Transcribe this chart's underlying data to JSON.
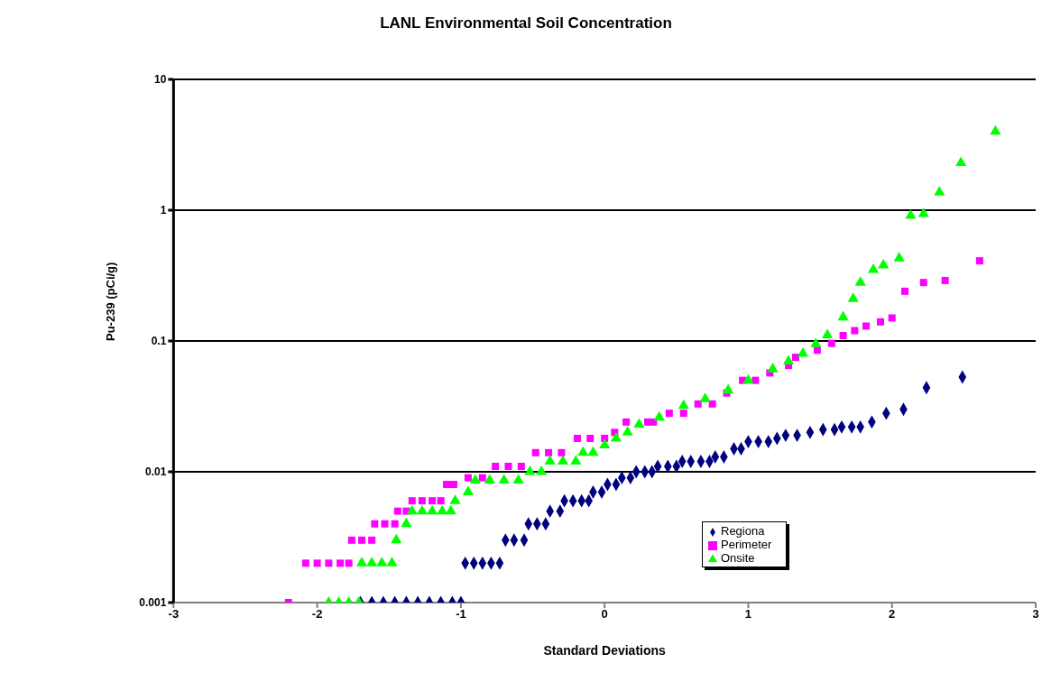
{
  "chart_data": {
    "type": "scatter",
    "title": "LANL Environmental Soil Concentration",
    "xlabel": "Standard Deviations",
    "ylabel": "Pu-239 (pCi/g)",
    "log": "y",
    "xlim": [
      -3,
      3
    ],
    "xticks": [
      -3,
      -2,
      -1,
      0,
      1,
      2,
      3
    ],
    "ylim": [
      0.001,
      10
    ],
    "yticks": [
      0.001,
      0.01,
      0.1,
      1,
      10
    ],
    "grid": "y",
    "legend": "bottom right",
    "series": [
      {
        "name": "Regiona",
        "color": "#000080",
        "marker": "diamond",
        "x": [
          -1.7,
          -1.62,
          -1.54,
          -1.46,
          -1.38,
          -1.3,
          -1.22,
          -1.14,
          -1.06,
          -1.0,
          -0.97,
          -0.91,
          -0.85,
          -0.79,
          -0.73,
          -0.69,
          -0.63,
          -0.56,
          -0.53,
          -0.47,
          -0.41,
          -0.38,
          -0.31,
          -0.28,
          -0.22,
          -0.16,
          -0.11,
          -0.08,
          -0.02,
          0.02,
          0.08,
          0.12,
          0.18,
          0.22,
          0.28,
          0.33,
          0.37,
          0.44,
          0.5,
          0.54,
          0.6,
          0.67,
          0.73,
          0.77,
          0.83,
          0.9,
          0.95,
          1.0,
          1.07,
          1.14,
          1.2,
          1.26,
          1.34,
          1.43,
          1.52,
          1.6,
          1.65,
          1.72,
          1.78,
          1.86,
          1.96,
          2.08,
          2.24,
          2.49
        ],
        "values": [
          0.001,
          0.001,
          0.001,
          0.001,
          0.001,
          0.001,
          0.001,
          0.001,
          0.001,
          0.001,
          0.002,
          0.002,
          0.002,
          0.002,
          0.002,
          0.003,
          0.003,
          0.003,
          0.004,
          0.004,
          0.004,
          0.005,
          0.005,
          0.006,
          0.006,
          0.006,
          0.006,
          0.007,
          0.007,
          0.008,
          0.008,
          0.009,
          0.009,
          0.01,
          0.01,
          0.01,
          0.011,
          0.011,
          0.011,
          0.012,
          0.012,
          0.012,
          0.012,
          0.013,
          0.013,
          0.015,
          0.015,
          0.017,
          0.017,
          0.017,
          0.018,
          0.019,
          0.019,
          0.02,
          0.021,
          0.021,
          0.022,
          0.022,
          0.022,
          0.024,
          0.028,
          0.03,
          0.044,
          0.053
        ]
      },
      {
        "name": "Perimeter",
        "color": "#ff00ff",
        "marker": "square",
        "x": [
          -2.2,
          -2.08,
          -2.0,
          -1.92,
          -1.84,
          -1.78,
          -1.76,
          -1.69,
          -1.62,
          -1.6,
          -1.53,
          -1.46,
          -1.44,
          -1.38,
          -1.34,
          -1.27,
          -1.2,
          -1.14,
          -1.1,
          -1.05,
          -0.95,
          -0.85,
          -0.76,
          -0.67,
          -0.58,
          -0.48,
          -0.39,
          -0.3,
          -0.19,
          -0.1,
          0.0,
          0.07,
          0.15,
          0.3,
          0.34,
          0.45,
          0.55,
          0.65,
          0.75,
          0.85,
          0.96,
          1.05,
          1.15,
          1.28,
          1.33,
          1.48,
          1.58,
          1.66,
          1.74,
          1.82,
          1.92,
          2.0,
          2.09,
          2.22,
          2.37,
          2.61
        ],
        "values": [
          0.001,
          0.002,
          0.002,
          0.002,
          0.002,
          0.002,
          0.003,
          0.003,
          0.003,
          0.004,
          0.004,
          0.004,
          0.005,
          0.005,
          0.006,
          0.006,
          0.006,
          0.006,
          0.008,
          0.008,
          0.009,
          0.009,
          0.011,
          0.011,
          0.011,
          0.014,
          0.014,
          0.014,
          0.018,
          0.018,
          0.018,
          0.02,
          0.024,
          0.024,
          0.024,
          0.028,
          0.028,
          0.033,
          0.033,
          0.04,
          0.05,
          0.05,
          0.057,
          0.065,
          0.075,
          0.085,
          0.096,
          0.11,
          0.12,
          0.13,
          0.14,
          0.15,
          0.24,
          0.28,
          0.29,
          0.41
        ]
      },
      {
        "name": "Onsite",
        "color": "#00ff00",
        "marker": "triangle",
        "x": [
          -1.92,
          -1.85,
          -1.78,
          -1.71,
          -1.69,
          -1.62,
          -1.55,
          -1.48,
          -1.45,
          -1.38,
          -1.34,
          -1.27,
          -1.2,
          -1.13,
          -1.07,
          -1.04,
          -0.95,
          -0.9,
          -0.8,
          -0.7,
          -0.6,
          -0.52,
          -0.44,
          -0.38,
          -0.29,
          -0.2,
          -0.15,
          -0.08,
          0.0,
          0.08,
          0.16,
          0.24,
          0.38,
          0.55,
          0.7,
          0.86,
          1.0,
          1.17,
          1.28,
          1.38,
          1.47,
          1.55,
          1.66,
          1.73,
          1.78,
          1.87,
          1.94,
          2.05,
          2.13,
          2.22,
          2.33,
          2.48,
          2.72
        ],
        "values": [
          0.001,
          0.001,
          0.001,
          0.001,
          0.002,
          0.002,
          0.002,
          0.002,
          0.003,
          0.004,
          0.005,
          0.005,
          0.005,
          0.005,
          0.005,
          0.006,
          0.007,
          0.0086,
          0.0086,
          0.0086,
          0.0086,
          0.01,
          0.01,
          0.012,
          0.012,
          0.012,
          0.014,
          0.014,
          0.016,
          0.018,
          0.02,
          0.023,
          0.026,
          0.032,
          0.036,
          0.042,
          0.05,
          0.061,
          0.07,
          0.08,
          0.095,
          0.111,
          0.152,
          0.21,
          0.28,
          0.35,
          0.38,
          0.43,
          0.91,
          0.94,
          1.37,
          2.3,
          4.0
        ]
      }
    ]
  }
}
